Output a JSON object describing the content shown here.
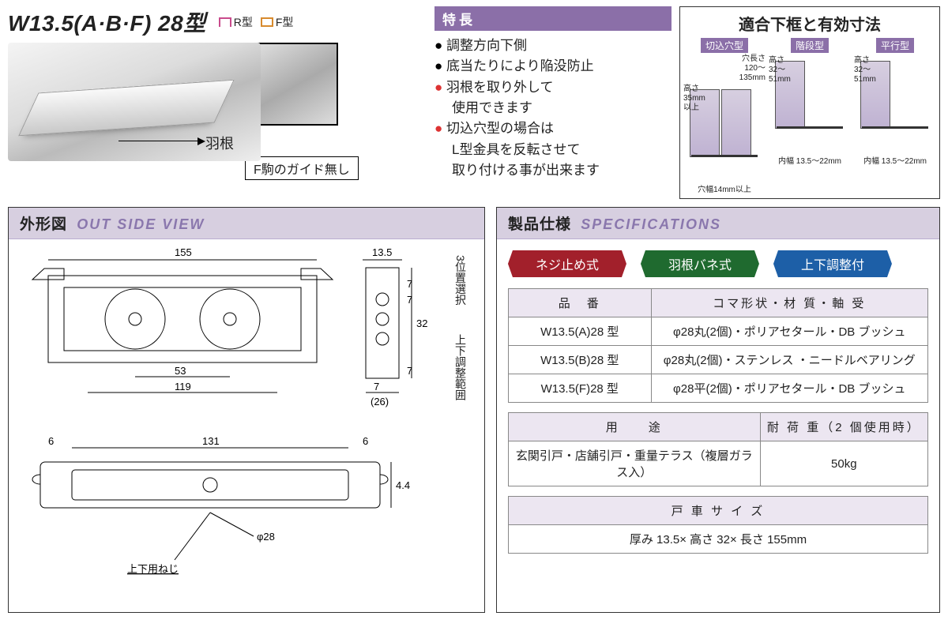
{
  "title": "W13.5(A·B·F) 28型",
  "type_marks": [
    {
      "label": "R型",
      "color": "#c94b8c"
    },
    {
      "label": "F型",
      "color": "#d88b2e"
    }
  ],
  "hane_label": "羽根",
  "f_koma_note": "F駒のガイド無し",
  "features_header": "特長",
  "features": [
    {
      "style": "b-dot",
      "text": "調整方向下側"
    },
    {
      "style": "b-dot",
      "text": "底当たりにより陥没防止"
    },
    {
      "style": "r-dot",
      "text": "羽根を取り外して\n使用できます"
    },
    {
      "style": "r-dot",
      "text": "切込穴型の場合は\nL型金具を反転させて\n取り付ける事が出来ます"
    }
  ],
  "fit_title": "適合下框と有効寸法",
  "fit_cols": [
    {
      "tag": "切込穴型",
      "top": "穴長さ\n120～\n135mm",
      "side": "高さ\n35mm\n以上",
      "bottom": "穴幅14mm以上"
    },
    {
      "tag": "階段型",
      "top": "",
      "side": "高さ\n32～\n51mm",
      "bottom": "内幅 13.5～22mm"
    },
    {
      "tag": "平行型",
      "top": "",
      "side": "高さ\n32～\n51mm",
      "bottom": "内幅 13.5～22mm"
    }
  ],
  "outside_header_jp": "外形図",
  "outside_header_en": "OUT SIDE VIEW",
  "outside_dims": {
    "L_total": "155",
    "L_inner1": "53",
    "L_inner2": "119",
    "T": "13.5",
    "H": "32",
    "h1": "7",
    "h2": "7",
    "h3": "7",
    "paren": "(26)",
    "L_top2": "131",
    "edge": "6",
    "edge2": "6",
    "thk": "4.4",
    "dia": "φ28",
    "screw_note": "上下用ねじ",
    "side_note1": "3位置選択",
    "side_note2": "上下調整範囲"
  },
  "spec_header_jp": "製品仕様",
  "spec_header_en": "SPECIFICATIONS",
  "spec_tags": [
    {
      "text": "ネジ止め式",
      "color": "#a2202b"
    },
    {
      "text": "羽根バネ式",
      "color": "#1f6a2f"
    },
    {
      "text": "上下調整付",
      "color": "#1d5fa7"
    }
  ],
  "spec_table1": {
    "headers": [
      "品　番",
      "コマ形状・材 質・軸 受"
    ],
    "col_widths": [
      "34%",
      "66%"
    ],
    "rows": [
      [
        "W13.5(A)28 型",
        "φ28丸(2個)・ポリアセタール・DB ブッシュ"
      ],
      [
        "W13.5(B)28 型",
        "φ28丸(2個)・ステンレス ・ニードルベアリング"
      ],
      [
        "W13.5(F)28 型",
        "φ28平(2個)・ポリアセタール・DB ブッシュ"
      ]
    ]
  },
  "spec_table2": {
    "headers": [
      "用　　途",
      "耐 荷 重（2 個使用時）"
    ],
    "col_widths": [
      "60%",
      "40%"
    ],
    "rows": [
      [
        "玄関引戸・店舗引戸・重量テラス（複層ガラス入）",
        "50kg"
      ]
    ]
  },
  "spec_table3": {
    "header": "戸 車 サ イ ズ",
    "row": "厚み 13.5× 高さ 32× 長さ 155mm"
  }
}
